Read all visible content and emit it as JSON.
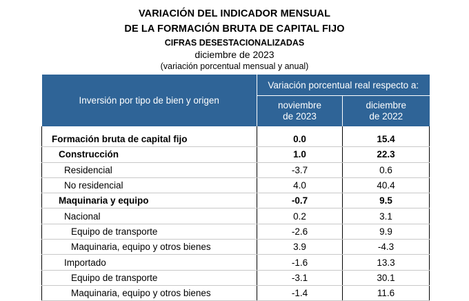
{
  "header": {
    "title_line1": "VARIACIÓN DEL INDICADOR MENSUAL",
    "title_line2": "DE LA FORMACIÓN BRUTA DE CAPITAL FIJO",
    "subtitle": "CIFRAS DESESTACIONALIZADAS",
    "period": "diciembre de 2023",
    "note": "(variación porcentual mensual y anual)"
  },
  "table": {
    "row_header": "Inversión por tipo de bien y origen",
    "group_header": "Variación porcentual real respecto a:",
    "col1": "noviembre de 2023",
    "col2": "diciembre de 2022",
    "rows": [
      {
        "label": "Formación bruta de capital fijo",
        "v1": "0.0",
        "v2": "15.4",
        "level": 0,
        "bold": true
      },
      {
        "label": "Construcción",
        "v1": "1.0",
        "v2": "22.3",
        "level": 1,
        "bold": true
      },
      {
        "label": "Residencial",
        "v1": "-3.7",
        "v2": "0.6",
        "level": 2,
        "bold": false
      },
      {
        "label": "No residencial",
        "v1": "4.0",
        "v2": "40.4",
        "level": 2,
        "bold": false
      },
      {
        "label": "Maquinaria y equipo",
        "v1": "-0.7",
        "v2": "9.5",
        "level": 1,
        "bold": true
      },
      {
        "label": "Nacional",
        "v1": "0.2",
        "v2": "3.1",
        "level": 2,
        "bold": false
      },
      {
        "label": "Equipo de transporte",
        "v1": "-2.6",
        "v2": "9.9",
        "level": 3,
        "bold": false
      },
      {
        "label": "Maquinaria, equipo y otros bienes",
        "v1": "3.9",
        "v2": "-4.3",
        "level": 3,
        "bold": false
      },
      {
        "label": "Importado",
        "v1": "-1.6",
        "v2": "13.3",
        "level": 2,
        "bold": false
      },
      {
        "label": "Equipo de transporte",
        "v1": "-3.1",
        "v2": "30.1",
        "level": 3,
        "bold": false
      },
      {
        "label": "Maquinaria, equipo y otros bienes",
        "v1": "-1.4",
        "v2": "11.6",
        "level": 3,
        "bold": false
      }
    ]
  }
}
